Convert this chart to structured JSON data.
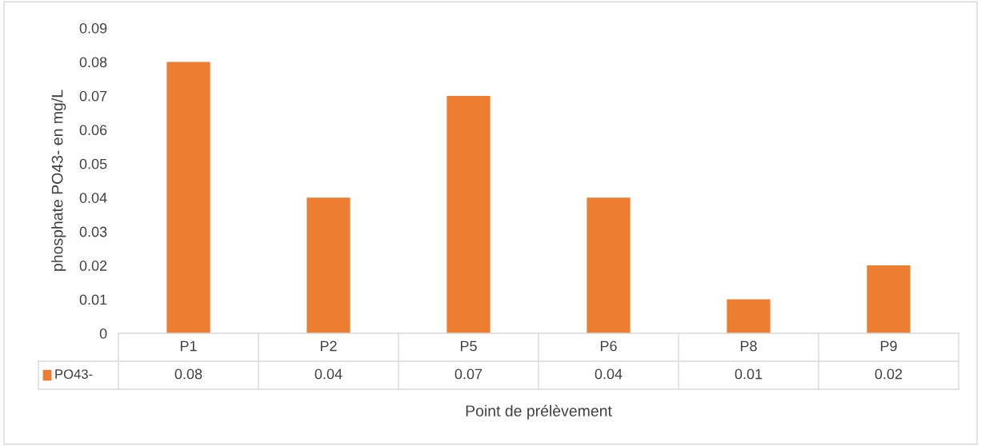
{
  "chart_data": {
    "type": "bar",
    "xlabel": "Point de prélèvement",
    "ylabel": "phosphate PO43- en mg/L",
    "categories": [
      "P1",
      "P2",
      "P5",
      "P6",
      "P8",
      "P9"
    ],
    "series": [
      {
        "name": "PO43-",
        "color": "#ed7d31",
        "values": [
          0.08,
          0.04,
          0.07,
          0.04,
          0.01,
          0.02
        ]
      }
    ],
    "ylim": [
      0,
      0.09
    ],
    "yticks": [
      0,
      0.01,
      0.02,
      0.03,
      0.04,
      0.05,
      0.06,
      0.07,
      0.08,
      0.09
    ],
    "data_labels": true,
    "legend": "bottom left",
    "grid": false
  }
}
